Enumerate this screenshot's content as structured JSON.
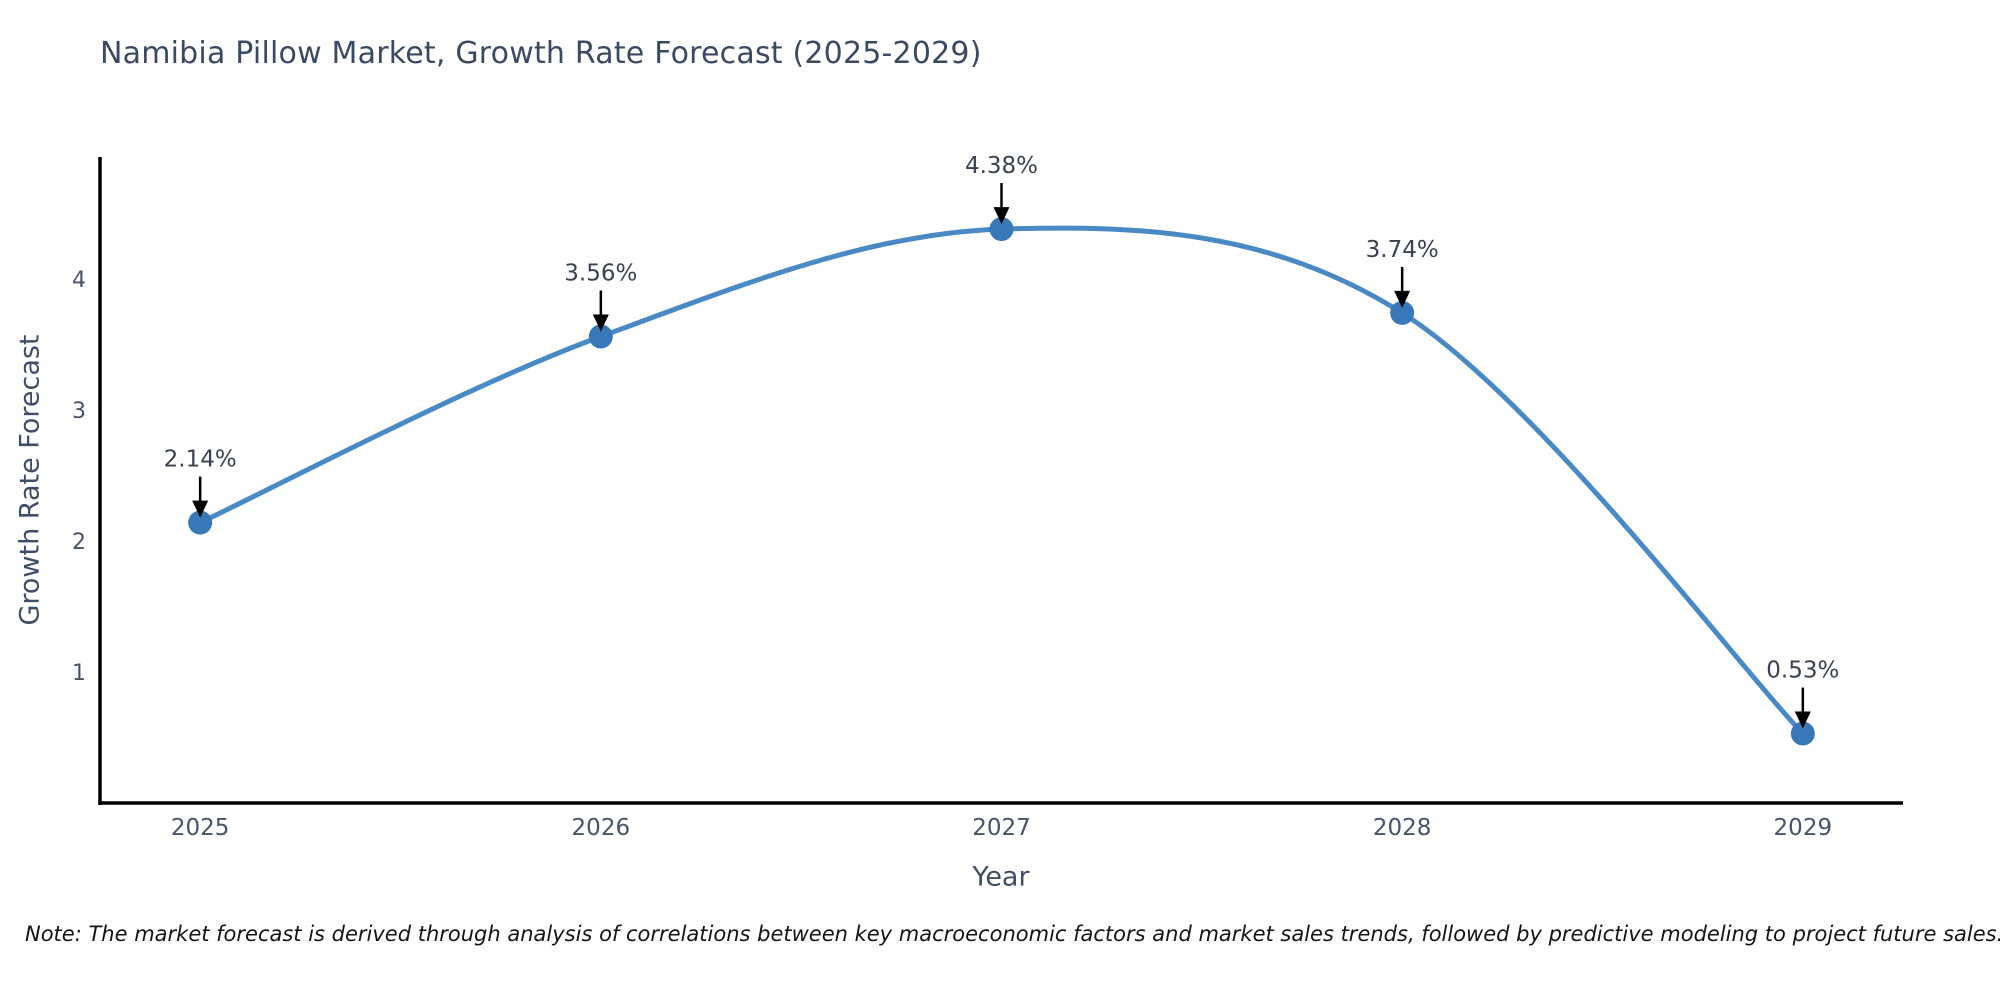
{
  "title": "Namibia Pillow Market, Growth Rate Forecast (2025-2029)",
  "note": "Note: The market forecast is derived through analysis of correlations between key macroeconomic factors and market sales trends, followed by predictive modeling to project future sales.",
  "chart_data": {
    "type": "line",
    "title": "Namibia Pillow Market, Growth Rate Forecast (2025-2029)",
    "xlabel": "Year",
    "ylabel": "Growth Rate Forecast",
    "categories": [
      "2025",
      "2026",
      "2027",
      "2028",
      "2029"
    ],
    "x": [
      2025,
      2026,
      2027,
      2028,
      2029
    ],
    "series": [
      {
        "name": "Growth Rate Forecast",
        "values": [
          2.14,
          3.56,
          4.38,
          3.74,
          0.53
        ]
      }
    ],
    "point_labels": [
      "2.14%",
      "3.56%",
      "4.38%",
      "3.74%",
      "0.53%"
    ],
    "xticks": [
      "2025",
      "2026",
      "2027",
      "2028",
      "2029"
    ],
    "yticks": [
      1,
      2,
      3,
      4
    ],
    "xlim": [
      2024.75,
      2029.25
    ],
    "ylim": [
      0,
      4.93
    ],
    "grid": false,
    "legend_position": "none",
    "curve": "smooth",
    "annotations_arrowed": true
  },
  "colors": {
    "background": "#ffffff",
    "title": "#3b4a63",
    "axis_title": "#3f4e68",
    "tick_label": "#47536a",
    "annotation_label": "#3a4150",
    "spine": "#000000",
    "line": "#4a8ac4",
    "marker": "#3978b7",
    "arrow": "#000000",
    "note": "#141414"
  }
}
